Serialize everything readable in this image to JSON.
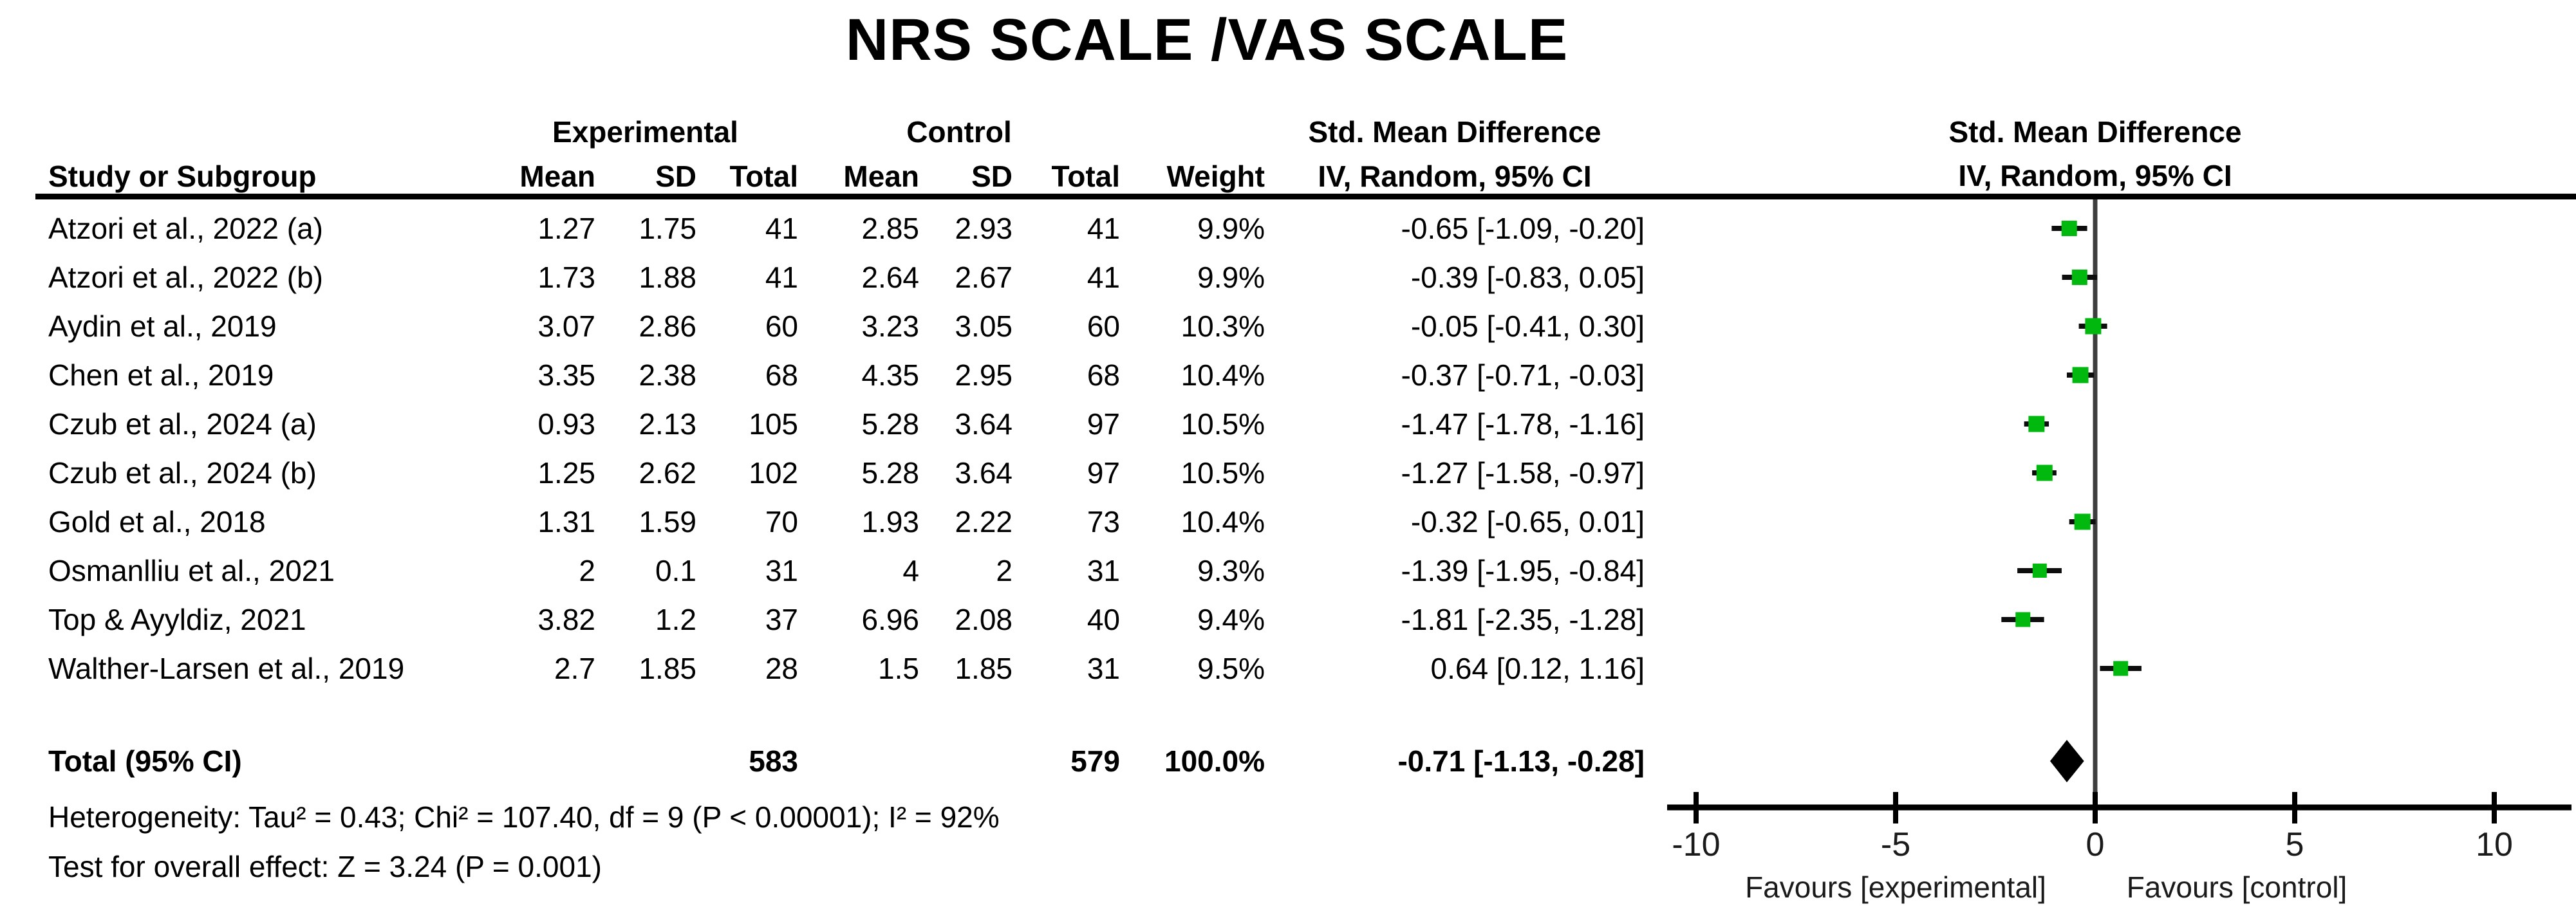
{
  "title": "NRS SCALE /VAS SCALE",
  "table": {
    "group_headers": {
      "experimental": "Experimental",
      "control": "Control",
      "smd_text_col": "Std. Mean Difference",
      "smd_plot_col": "Std. Mean Difference"
    },
    "col_headers": {
      "study": "Study or Subgroup",
      "mean_exp": "Mean",
      "sd_exp": "SD",
      "total_exp": "Total",
      "mean_ctrl": "Mean",
      "sd_ctrl": "SD",
      "total_ctrl": "Total",
      "weight": "Weight",
      "iv_text_col": "IV, Random, 95% CI",
      "iv_plot_col": "IV, Random, 95% CI"
    },
    "rows": [
      {
        "study": "Atzori et al., 2022 (a)",
        "e_mean": "1.27",
        "e_sd": "1.75",
        "e_total": "41",
        "c_mean": "2.85",
        "c_sd": "2.93",
        "c_total": "41",
        "weight": "9.9%",
        "ci_text": "-0.65 [-1.09, -0.20]"
      },
      {
        "study": "Atzori et al., 2022 (b)",
        "e_mean": "1.73",
        "e_sd": "1.88",
        "e_total": "41",
        "c_mean": "2.64",
        "c_sd": "2.67",
        "c_total": "41",
        "weight": "9.9%",
        "ci_text": "-0.39 [-0.83, 0.05]"
      },
      {
        "study": "Aydin et al., 2019",
        "e_mean": "3.07",
        "e_sd": "2.86",
        "e_total": "60",
        "c_mean": "3.23",
        "c_sd": "3.05",
        "c_total": "60",
        "weight": "10.3%",
        "ci_text": "-0.05 [-0.41, 0.30]"
      },
      {
        "study": "Chen et al., 2019",
        "e_mean": "3.35",
        "e_sd": "2.38",
        "e_total": "68",
        "c_mean": "4.35",
        "c_sd": "2.95",
        "c_total": "68",
        "weight": "10.4%",
        "ci_text": "-0.37 [-0.71, -0.03]"
      },
      {
        "study": "Czub et al., 2024 (a)",
        "e_mean": "0.93",
        "e_sd": "2.13",
        "e_total": "105",
        "c_mean": "5.28",
        "c_sd": "3.64",
        "c_total": "97",
        "weight": "10.5%",
        "ci_text": "-1.47 [-1.78, -1.16]"
      },
      {
        "study": "Czub et al., 2024 (b)",
        "e_mean": "1.25",
        "e_sd": "2.62",
        "e_total": "102",
        "c_mean": "5.28",
        "c_sd": "3.64",
        "c_total": "97",
        "weight": "10.5%",
        "ci_text": "-1.27 [-1.58, -0.97]"
      },
      {
        "study": "Gold et al., 2018",
        "e_mean": "1.31",
        "e_sd": "1.59",
        "e_total": "70",
        "c_mean": "1.93",
        "c_sd": "2.22",
        "c_total": "73",
        "weight": "10.4%",
        "ci_text": "-0.32 [-0.65, 0.01]"
      },
      {
        "study": "Osmanlliu et al., 2021",
        "e_mean": "2",
        "e_sd": "0.1",
        "e_total": "31",
        "c_mean": "4",
        "c_sd": "2",
        "c_total": "31",
        "weight": "9.3%",
        "ci_text": "-1.39 [-1.95, -0.84]"
      },
      {
        "study": "Top & Ayyldiz, 2021",
        "e_mean": "3.82",
        "e_sd": "1.2",
        "e_total": "37",
        "c_mean": "6.96",
        "c_sd": "2.08",
        "c_total": "40",
        "weight": "9.4%",
        "ci_text": "-1.81 [-2.35, -1.28]"
      },
      {
        "study": "Walther-Larsen et al., 2019",
        "e_mean": "2.7",
        "e_sd": "1.85",
        "e_total": "28",
        "c_mean": "1.5",
        "c_sd": "1.85",
        "c_total": "31",
        "weight": "9.5%",
        "ci_text": "0.64 [0.12, 1.16]"
      }
    ],
    "total_row": {
      "label": "Total (95% CI)",
      "e_total": "583",
      "c_total": "579",
      "weight": "100.0%",
      "ci_text": "-0.71 [-1.13, -0.28]"
    },
    "footnotes": [
      "Heterogeneity: Tau² = 0.43; Chi² = 107.40, df = 9 (P < 0.00001); I² = 92%",
      "Test for overall effect: Z = 3.24 (P = 0.001)"
    ]
  },
  "chart_data": {
    "type": "forest",
    "title": "NRS SCALE /VAS SCALE",
    "effect_measure": "Std. Mean Difference, IV, Random, 95% CI",
    "axis": {
      "min": -10,
      "max": 10,
      "ticks": [
        -10,
        -5,
        0,
        5,
        10
      ]
    },
    "x_labels": {
      "left": "Favours [experimental]",
      "right": "Favours [control]"
    },
    "marker_color": "#00b80e",
    "line_color": "#0d0d0d",
    "studies": [
      {
        "name": "Atzori et al., 2022 (a)",
        "est": -0.65,
        "lo": -1.09,
        "hi": -0.2,
        "weight": 9.9
      },
      {
        "name": "Atzori et al., 2022 (b)",
        "est": -0.39,
        "lo": -0.83,
        "hi": 0.05,
        "weight": 9.9
      },
      {
        "name": "Aydin et al., 2019",
        "est": -0.05,
        "lo": -0.41,
        "hi": 0.3,
        "weight": 10.3
      },
      {
        "name": "Chen et al., 2019",
        "est": -0.37,
        "lo": -0.71,
        "hi": -0.03,
        "weight": 10.4
      },
      {
        "name": "Czub et al., 2024 (a)",
        "est": -1.47,
        "lo": -1.78,
        "hi": -1.16,
        "weight": 10.5
      },
      {
        "name": "Czub et al., 2024 (b)",
        "est": -1.27,
        "lo": -1.58,
        "hi": -0.97,
        "weight": 10.5
      },
      {
        "name": "Gold et al., 2018",
        "est": -0.32,
        "lo": -0.65,
        "hi": 0.01,
        "weight": 10.4
      },
      {
        "name": "Osmanlliu et al., 2021",
        "est": -1.39,
        "lo": -1.95,
        "hi": -0.84,
        "weight": 9.3
      },
      {
        "name": "Top & Ayyldiz, 2021",
        "est": -1.81,
        "lo": -2.35,
        "hi": -1.28,
        "weight": 9.4
      },
      {
        "name": "Walther-Larsen et al., 2019",
        "est": 0.64,
        "lo": 0.12,
        "hi": 1.16,
        "weight": 9.5
      }
    ],
    "total": {
      "est": -0.71,
      "lo": -1.13,
      "hi": -0.28
    }
  }
}
